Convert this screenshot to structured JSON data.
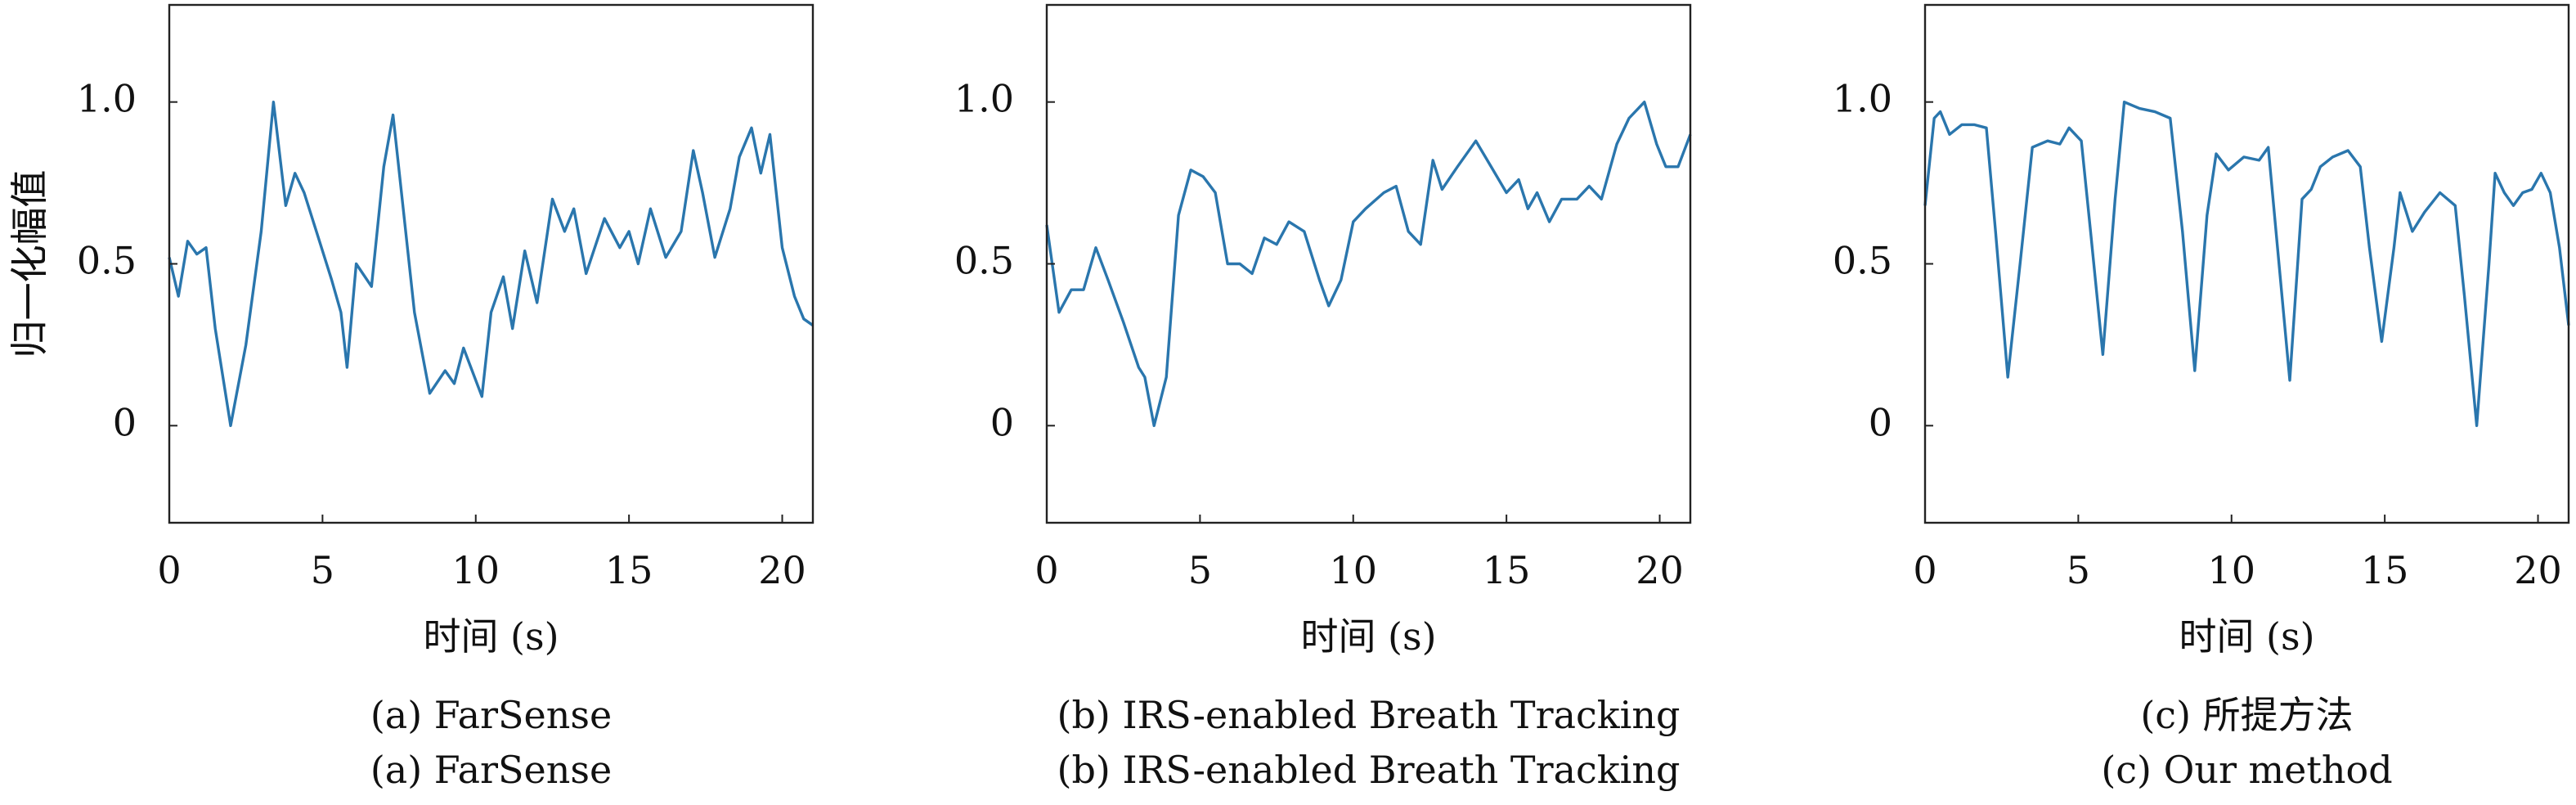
{
  "chart_data": [
    {
      "type": "line",
      "xlabel": "时间 (s)",
      "ylabel": "归一化幅值",
      "caption": [
        "(a) FarSense",
        "(a) FarSense"
      ],
      "xlim": [
        0,
        21
      ],
      "ylim": [
        -0.3,
        1.3
      ],
      "xticks": [
        0,
        5,
        10,
        15,
        20
      ],
      "yticks": [
        0,
        0.5,
        {
          "value": 1.0,
          "label": "1.0"
        }
      ],
      "series": [
        {
          "color": "#2a76ad",
          "x": [
            0,
            0.3,
            0.6,
            0.9,
            1.2,
            1.5,
            2.0,
            2.5,
            3.0,
            3.4,
            3.8,
            4.1,
            4.4,
            4.8,
            5.3,
            5.6,
            5.8,
            6.1,
            6.6,
            7.0,
            7.3,
            7.6,
            8.0,
            8.5,
            9.0,
            9.3,
            9.6,
            10.2,
            10.5,
            10.9,
            11.2,
            11.6,
            12.0,
            12.5,
            12.9,
            13.2,
            13.6,
            14.2,
            14.7,
            15.0,
            15.3,
            15.7,
            16.2,
            16.7,
            17.1,
            17.4,
            17.8,
            18.3,
            18.6,
            19.0,
            19.3,
            19.6,
            20.0,
            20.4,
            20.7,
            21.0
          ],
          "values": [
            0.52,
            0.4,
            0.57,
            0.53,
            0.55,
            0.3,
            0.0,
            0.25,
            0.6,
            1.0,
            0.68,
            0.78,
            0.72,
            0.6,
            0.45,
            0.35,
            0.18,
            0.5,
            0.43,
            0.8,
            0.96,
            0.7,
            0.35,
            0.1,
            0.17,
            0.13,
            0.24,
            0.09,
            0.35,
            0.46,
            0.3,
            0.54,
            0.38,
            0.7,
            0.6,
            0.67,
            0.47,
            0.64,
            0.55,
            0.6,
            0.5,
            0.67,
            0.52,
            0.6,
            0.85,
            0.72,
            0.52,
            0.67,
            0.83,
            0.92,
            0.78,
            0.9,
            0.55,
            0.4,
            0.33,
            0.31
          ]
        }
      ]
    },
    {
      "type": "line",
      "xlabel": "时间 (s)",
      "ylabel": "归一化幅值",
      "caption": [
        "(b) IRS-enabled Breath Tracking",
        "(b) IRS-enabled Breath Tracking"
      ],
      "xlim": [
        0,
        21
      ],
      "ylim": [
        -0.3,
        1.3
      ],
      "xticks": [
        0,
        5,
        10,
        15,
        20
      ],
      "yticks": [
        0,
        0.5,
        {
          "value": 1.0,
          "label": "1.0"
        }
      ],
      "series": [
        {
          "color": "#2a76ad",
          "x": [
            0,
            0.4,
            0.8,
            1.2,
            1.6,
            2.0,
            2.5,
            3.0,
            3.2,
            3.5,
            3.9,
            4.3,
            4.7,
            5.1,
            5.5,
            5.9,
            6.3,
            6.7,
            7.1,
            7.5,
            7.9,
            8.4,
            8.9,
            9.2,
            9.6,
            10.0,
            10.4,
            11.0,
            11.4,
            11.8,
            12.2,
            12.6,
            12.9,
            13.4,
            14.0,
            14.5,
            15.0,
            15.4,
            15.7,
            16.0,
            16.4,
            16.8,
            17.3,
            17.7,
            18.1,
            18.6,
            19.0,
            19.5,
            19.9,
            20.2,
            20.6,
            21.0
          ],
          "values": [
            0.62,
            0.35,
            0.42,
            0.42,
            0.55,
            0.45,
            0.32,
            0.18,
            0.15,
            0.0,
            0.15,
            0.65,
            0.79,
            0.77,
            0.72,
            0.5,
            0.5,
            0.47,
            0.58,
            0.56,
            0.63,
            0.6,
            0.45,
            0.37,
            0.45,
            0.63,
            0.67,
            0.72,
            0.74,
            0.6,
            0.56,
            0.82,
            0.73,
            0.8,
            0.88,
            0.8,
            0.72,
            0.76,
            0.67,
            0.72,
            0.63,
            0.7,
            0.7,
            0.74,
            0.7,
            0.87,
            0.95,
            1.0,
            0.87,
            0.8,
            0.8,
            0.9
          ]
        }
      ]
    },
    {
      "type": "line",
      "xlabel": "时间 (s)",
      "ylabel": "归一化幅值",
      "caption": [
        "(c) 所提方法",
        "(c) Our method"
      ],
      "xlim": [
        0,
        21
      ],
      "ylim": [
        -0.3,
        1.3
      ],
      "xticks": [
        0,
        5,
        10,
        15,
        20
      ],
      "yticks": [
        0,
        0.5,
        {
          "value": 1.0,
          "label": "1.0"
        }
      ],
      "series": [
        {
          "color": "#2a76ad",
          "x": [
            0,
            0.3,
            0.5,
            0.8,
            1.2,
            1.6,
            2.0,
            2.3,
            2.7,
            3.1,
            3.5,
            4.0,
            4.4,
            4.7,
            5.1,
            5.4,
            5.8,
            6.2,
            6.5,
            7.0,
            7.5,
            8.0,
            8.4,
            8.8,
            9.2,
            9.5,
            9.9,
            10.4,
            10.9,
            11.2,
            11.5,
            11.9,
            12.3,
            12.6,
            12.9,
            13.3,
            13.8,
            14.2,
            14.5,
            14.9,
            15.3,
            15.5,
            15.9,
            16.3,
            16.8,
            17.3,
            17.6,
            18.0,
            18.4,
            18.6,
            18.9,
            19.2,
            19.5,
            19.8,
            20.1,
            20.4,
            20.7,
            21.0
          ],
          "values": [
            0.68,
            0.95,
            0.97,
            0.9,
            0.93,
            0.93,
            0.92,
            0.6,
            0.15,
            0.5,
            0.86,
            0.88,
            0.87,
            0.92,
            0.88,
            0.6,
            0.22,
            0.7,
            1.0,
            0.98,
            0.97,
            0.95,
            0.6,
            0.17,
            0.65,
            0.84,
            0.79,
            0.83,
            0.82,
            0.86,
            0.55,
            0.14,
            0.7,
            0.73,
            0.8,
            0.83,
            0.85,
            0.8,
            0.55,
            0.26,
            0.55,
            0.72,
            0.6,
            0.66,
            0.72,
            0.68,
            0.4,
            0.0,
            0.5,
            0.78,
            0.72,
            0.68,
            0.72,
            0.73,
            0.78,
            0.72,
            0.55,
            0.31
          ]
        }
      ]
    }
  ]
}
